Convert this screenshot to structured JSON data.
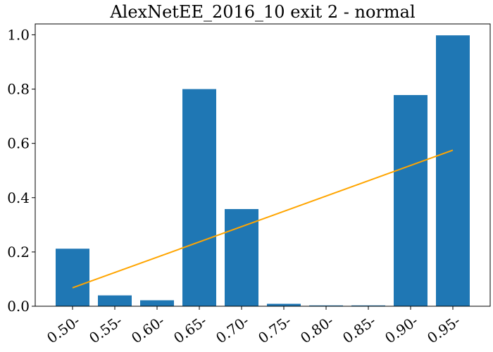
{
  "chart_data": {
    "type": "bar",
    "title": "AlexNetEE_2016_10 exit 2 - normal",
    "xlabel": "",
    "ylabel": "",
    "categories": [
      "0.50-",
      "0.55-",
      "0.60-",
      "0.65-",
      "0.70-",
      "0.75-",
      "0.80-",
      "0.85-",
      "0.90-",
      "0.95-"
    ],
    "values": [
      0.212,
      0.04,
      0.022,
      0.8,
      0.358,
      0.009,
      0.003,
      0.003,
      0.778,
      0.998
    ],
    "ylim": [
      0,
      1.04
    ],
    "yticks": [
      0.0,
      0.2,
      0.4,
      0.6,
      0.8,
      1.0
    ],
    "ytick_labels": [
      "0.0",
      "0.2",
      "0.4",
      "0.6",
      "0.8",
      "1.0"
    ],
    "bar_color": "#1f77b4",
    "trend_line": {
      "type": "line",
      "color": "#ffa500",
      "from": {
        "category": "0.50-",
        "value": 0.068
      },
      "to": {
        "category": "0.95-",
        "value": 0.575
      }
    },
    "grid": false,
    "legend": "none"
  }
}
